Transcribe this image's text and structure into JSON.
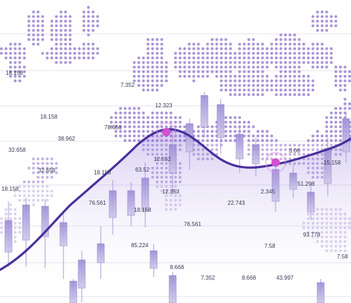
{
  "colors": {
    "background": "#ffffff",
    "map_dots": "#9b82cf",
    "grid_line": "#e3e2ee",
    "candle_fill": "#b9aedc",
    "candle_stroke": "#8f7fc6",
    "wick": "#a89bd6",
    "curve": "#4a2f9e",
    "marker": "#d24fd0",
    "marker_ring": "#e48fe1",
    "label_dark": "#3a3a5a",
    "label_cyan": "#39c5d8",
    "label_magenta": "#c0268e"
  },
  "labels": [
    {
      "text": "18.158",
      "color": "label_dark"
    },
    {
      "text": "38.962",
      "color": "label_magenta"
    },
    {
      "text": "78.656",
      "color": "label_magenta"
    },
    {
      "text": "32.658",
      "color": "label_magenta"
    },
    {
      "text": "32.658",
      "color": "label_cyan"
    },
    {
      "text": "18.158",
      "color": "label_magenta"
    },
    {
      "text": "18.158",
      "color": "label_dark"
    },
    {
      "text": "76.561",
      "color": "label_dark"
    },
    {
      "text": "12.552",
      "color": "label_dark"
    },
    {
      "text": "85.224",
      "color": "label_dark"
    },
    {
      "text": "8.668",
      "color": "label_magenta"
    },
    {
      "text": "7.352",
      "color": "label_magenta"
    },
    {
      "text": "8.668",
      "color": "label_cyan"
    },
    {
      "text": "43.997",
      "color": "label_dark"
    },
    {
      "text": "7.58",
      "color": "label_magenta"
    },
    {
      "text": "22.743",
      "color": "label_dark"
    },
    {
      "text": "2.345",
      "color": "label_dark"
    },
    {
      "text": "51.298",
      "color": "label_dark"
    },
    {
      "text": "93.778",
      "color": "label_dark"
    },
    {
      "text": "7.58",
      "color": "label_cyan"
    },
    {
      "text": "3.06",
      "color": "label_magenta"
    },
    {
      "text": "15.158",
      "color": "label_dark"
    },
    {
      "text": "63.52",
      "color": "label_magenta"
    },
    {
      "text": "7.352",
      "color": "label_dark"
    },
    {
      "text": "12.323",
      "color": "label_dark"
    },
    {
      "text": "12.353",
      "color": "label_cyan"
    },
    {
      "text": "18.158",
      "color": "label_cyan"
    },
    {
      "text": "76.561",
      "color": "label_dark"
    },
    {
      "text": "18.158",
      "color": "label_cyan"
    }
  ]
}
